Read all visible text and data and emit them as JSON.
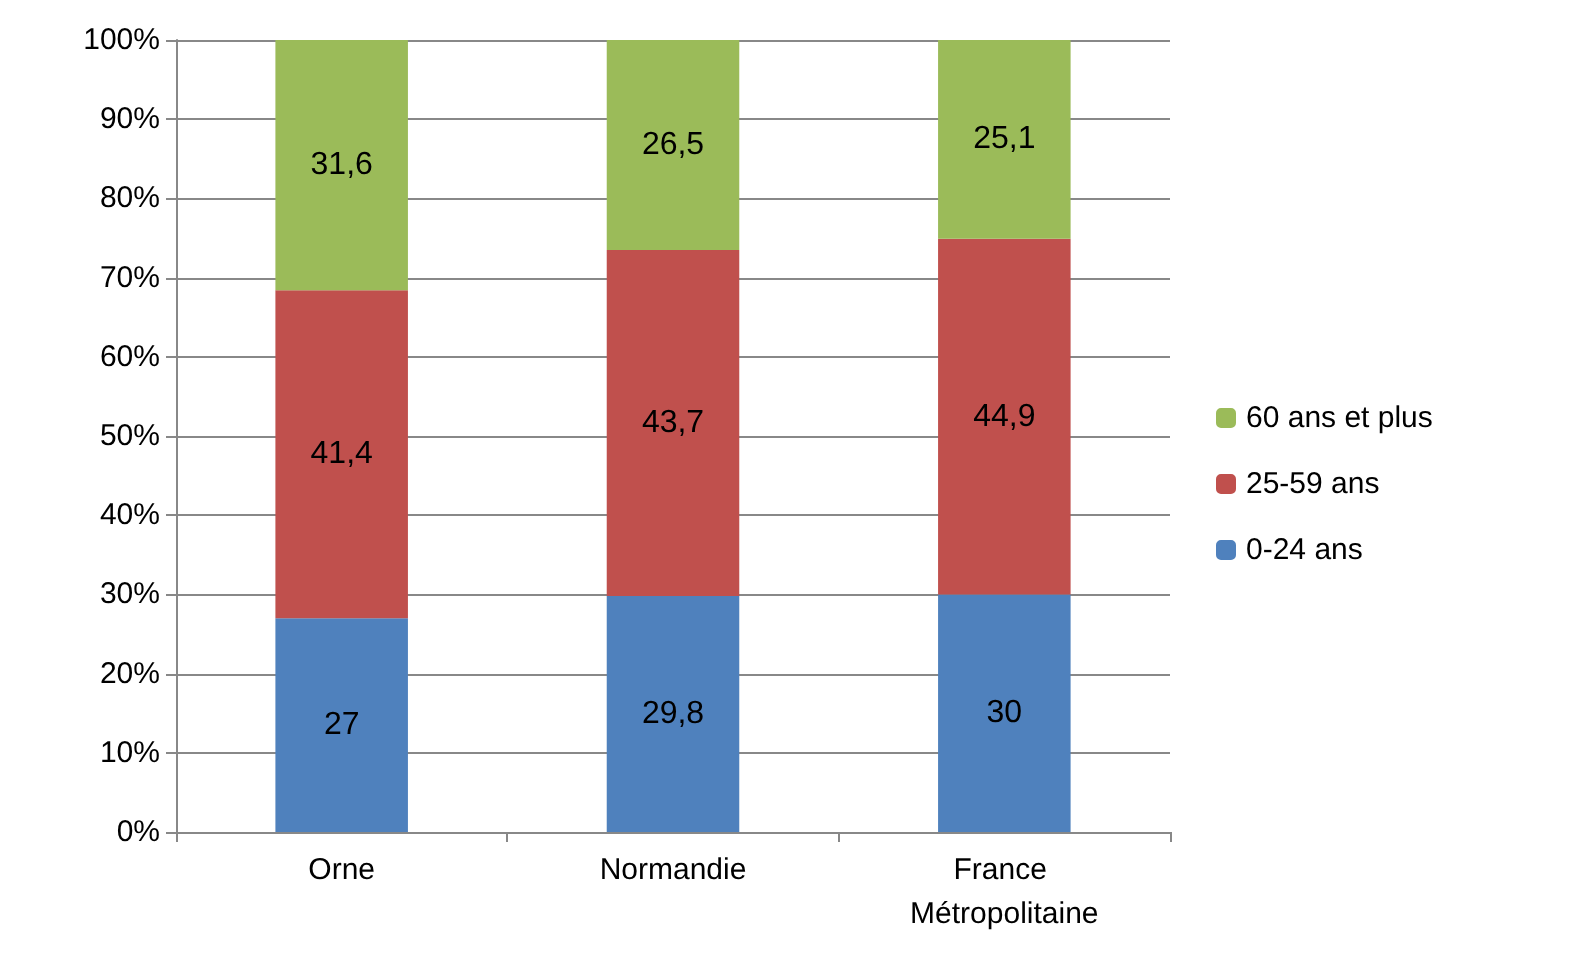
{
  "chart_data": {
    "type": "bar",
    "stacked": true,
    "categories": [
      "Orne",
      "Normandie",
      "France Métropolitaine"
    ],
    "series": [
      {
        "name": "0-24 ans",
        "color": "#4f81bd",
        "values": [
          27,
          29.8,
          30
        ],
        "value_labels": [
          "27",
          "29,8",
          "30"
        ]
      },
      {
        "name": "25-59 ans",
        "color": "#c0504d",
        "values": [
          41.4,
          43.7,
          44.9
        ],
        "value_labels": [
          "41,4",
          "43,7",
          "44,9"
        ]
      },
      {
        "name": "60 ans et plus",
        "color": "#9bbb59",
        "values": [
          31.6,
          26.5,
          25.1
        ],
        "value_labels": [
          "31,6",
          "26,5",
          "25,1"
        ]
      }
    ],
    "ylim": [
      0,
      100
    ],
    "yticks": [
      {
        "value": 0,
        "label": "0%"
      },
      {
        "value": 10,
        "label": "10%"
      },
      {
        "value": 20,
        "label": "20%"
      },
      {
        "value": 30,
        "label": "30%"
      },
      {
        "value": 40,
        "label": "40%"
      },
      {
        "value": 50,
        "label": "50%"
      },
      {
        "value": 60,
        "label": "60%"
      },
      {
        "value": 70,
        "label": "70%"
      },
      {
        "value": 80,
        "label": "80%"
      },
      {
        "value": 90,
        "label": "90%"
      },
      {
        "value": 100,
        "label": "100%"
      }
    ],
    "grid": "y",
    "legend": "right"
  }
}
